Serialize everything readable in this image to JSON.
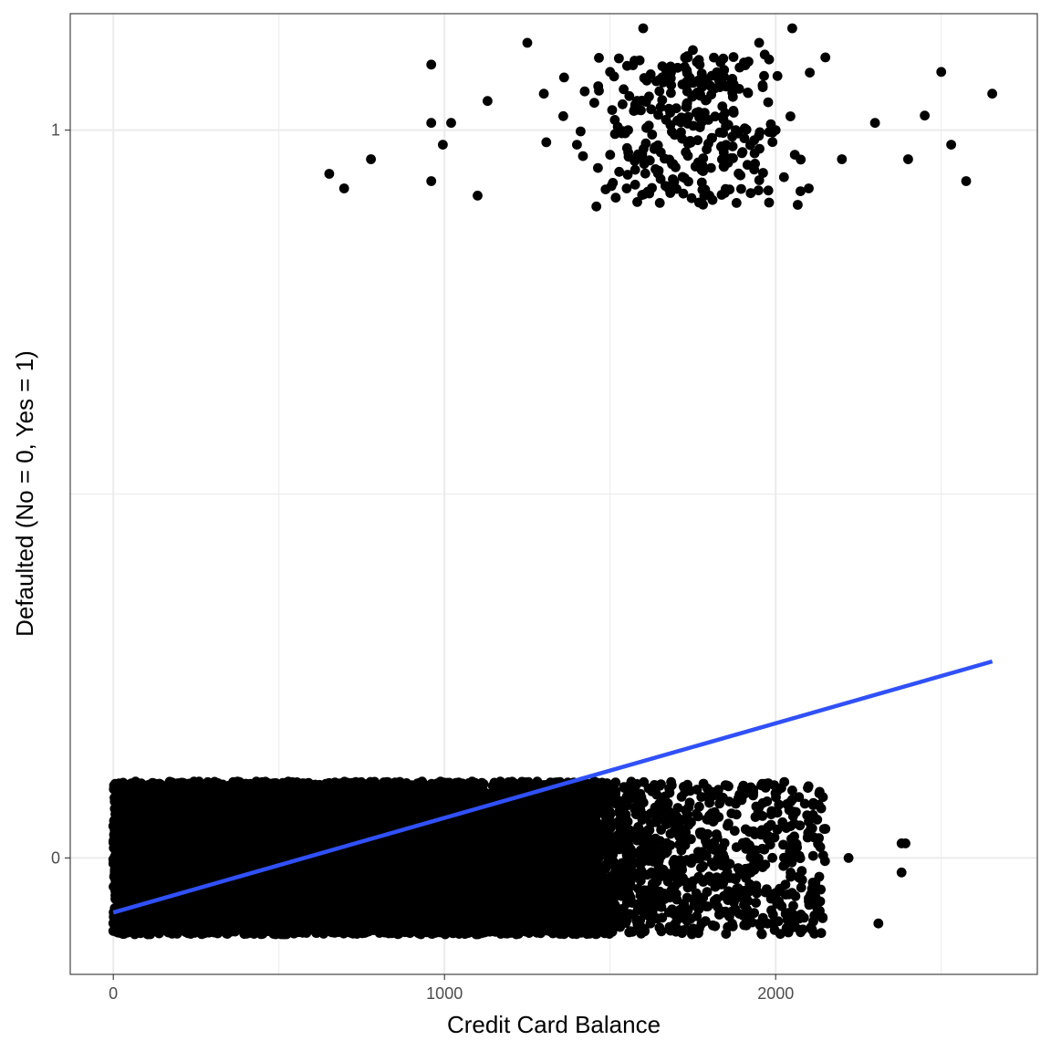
{
  "chart_data": {
    "type": "scatter",
    "title": "",
    "xlabel": "Credit Card Balance",
    "ylabel": "Defaulted (No = 0, Yes = 1)",
    "xlim": [
      -130,
      2790
    ],
    "ylim": [
      -0.16,
      1.16
    ],
    "x_ticks": [
      0,
      1000,
      2000
    ],
    "x_tick_labels": [
      "0",
      "1000",
      "2000"
    ],
    "y_ticks": [
      0,
      1
    ],
    "y_tick_labels": [
      "0",
      "1"
    ],
    "grid": true,
    "jitter_height": 0.105,
    "series": [
      {
        "kind": "points",
        "group": "defaulted = 1",
        "count": 333,
        "x_range": [
          652,
          2654
        ],
        "x_mean": 1748,
        "y": 1,
        "sample_points": [
          [
            652,
            0.94
          ],
          [
            697,
            0.92
          ],
          [
            778,
            0.96
          ],
          [
            960,
            1.09
          ],
          [
            960,
            0.93
          ],
          [
            960,
            1.01
          ],
          [
            995,
            0.98
          ],
          [
            1020,
            1.01
          ],
          [
            1100,
            0.91
          ],
          [
            1130,
            1.04
          ],
          [
            1250,
            1.12
          ],
          [
            1300,
            1.05
          ],
          [
            1400,
            0.98
          ],
          [
            1500,
            1.08
          ],
          [
            1550,
            0.92
          ],
          [
            1600,
            1.14
          ],
          [
            1650,
            0.9
          ],
          [
            1700,
            1.03
          ],
          [
            1750,
            1.11
          ],
          [
            1800,
            0.91
          ],
          [
            1850,
            1.06
          ],
          [
            1900,
            0.97
          ],
          [
            1950,
            1.12
          ],
          [
            2000,
            1.0
          ],
          [
            2050,
            1.14
          ],
          [
            2100,
            0.92
          ],
          [
            2150,
            1.1
          ],
          [
            2200,
            0.96
          ],
          [
            2300,
            1.01
          ],
          [
            2400,
            0.96
          ],
          [
            2450,
            1.02
          ],
          [
            2500,
            1.08
          ],
          [
            2530,
            0.98
          ],
          [
            2575,
            0.93
          ],
          [
            2654,
            1.05
          ]
        ],
        "color": "#000000"
      },
      {
        "kind": "points",
        "group": "defaulted = 0",
        "count": 9667,
        "x_range": [
          0,
          2392
        ],
        "x_mean": 804,
        "y": 0,
        "sample_points": [
          [
            1800,
            0.08
          ],
          [
            1900,
            0.09
          ],
          [
            1950,
            0.07
          ],
          [
            2050,
            0.08
          ],
          [
            2100,
            0.05
          ],
          [
            2150,
            0.04
          ],
          [
            2220,
            0.0
          ],
          [
            2310,
            -0.09
          ],
          [
            2380,
            0.02
          ],
          [
            2380,
            -0.02
          ],
          [
            2392,
            0.02
          ],
          [
            2010,
            -0.06
          ],
          [
            2040,
            -0.05
          ],
          [
            1910,
            -0.09
          ],
          [
            1990,
            -0.09
          ]
        ],
        "color": "#000000"
      },
      {
        "kind": "line",
        "name": "",
        "method": "linear regression",
        "x": [
          0,
          2654
        ],
        "y": [
          -0.075,
          0.27
        ],
        "color": "#3050f8"
      }
    ]
  }
}
